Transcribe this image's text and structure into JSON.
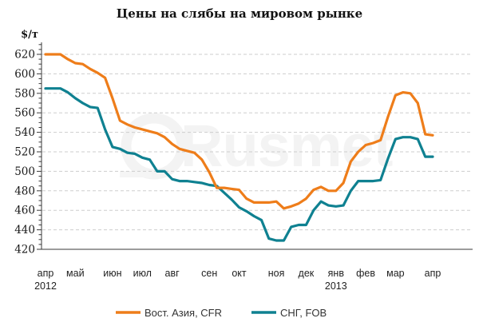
{
  "title": "Цены на слябы на мировом рынке",
  "y_axis_unit": "$/т",
  "watermark": "Rusmet",
  "colors": {
    "east_asia": "#EE7D1A",
    "cis": "#0F8191",
    "grid": "#CDCDCD",
    "axis": "#3A3A3A"
  },
  "legend": {
    "position": "bottom",
    "items": [
      {
        "label": "Вост. Азия, CFR",
        "color": "#EE7D1A"
      },
      {
        "label": "СНГ, FOB",
        "color": "#0F8191"
      }
    ]
  },
  "chart_data": {
    "type": "line",
    "title": "Цены на слябы на мировом рынке",
    "xlabel": "",
    "ylabel": "$/т",
    "ylim": [
      420,
      630
    ],
    "ytick_min": 420,
    "ytick_max": 620,
    "ytick_step": 20,
    "minor_tick_step": 5,
    "grid": "dashed-horizontal",
    "legend_position": "bottom",
    "x_unit": "weekly",
    "x_months": [
      "апр",
      "май",
      "июн",
      "июл",
      "авг",
      "сен",
      "окт",
      "ноя",
      "дек",
      "янв",
      "фев",
      "мар",
      "апр"
    ],
    "month_start_indices": [
      0,
      4,
      9,
      13,
      17,
      22,
      26,
      31,
      35,
      39,
      43,
      47,
      52
    ],
    "year_labels": [
      {
        "text": "2012",
        "month_index": 0
      },
      {
        "text": "2013",
        "month_index": 9
      }
    ],
    "series": [
      {
        "name": "Вост. Азия, CFR",
        "color": "#EE7D1A",
        "values": [
          620,
          620,
          620,
          615,
          611,
          610,
          605,
          601,
          596,
          575,
          552,
          548,
          545,
          543,
          541,
          539,
          535,
          528,
          523,
          521,
          519,
          512,
          499,
          483,
          483,
          482,
          481,
          472,
          468,
          468,
          468,
          469,
          462,
          464,
          467,
          472,
          481,
          484,
          480,
          480,
          488,
          510,
          520,
          527,
          529,
          532,
          556,
          578,
          581,
          580,
          570,
          538,
          537
        ]
      },
      {
        "name": "СНГ, FOB",
        "color": "#0F8191",
        "values": [
          585,
          585,
          585,
          581,
          575,
          570,
          566,
          565,
          543,
          525,
          523,
          519,
          518,
          514,
          512,
          500,
          500,
          492,
          490,
          490,
          489,
          488,
          486,
          485,
          478,
          471,
          463,
          459,
          454,
          450,
          431,
          429,
          429,
          443,
          445,
          445,
          460,
          469,
          465,
          464,
          465,
          480,
          490,
          490,
          490,
          491,
          513,
          533,
          535,
          535,
          533,
          515,
          515
        ]
      }
    ]
  }
}
